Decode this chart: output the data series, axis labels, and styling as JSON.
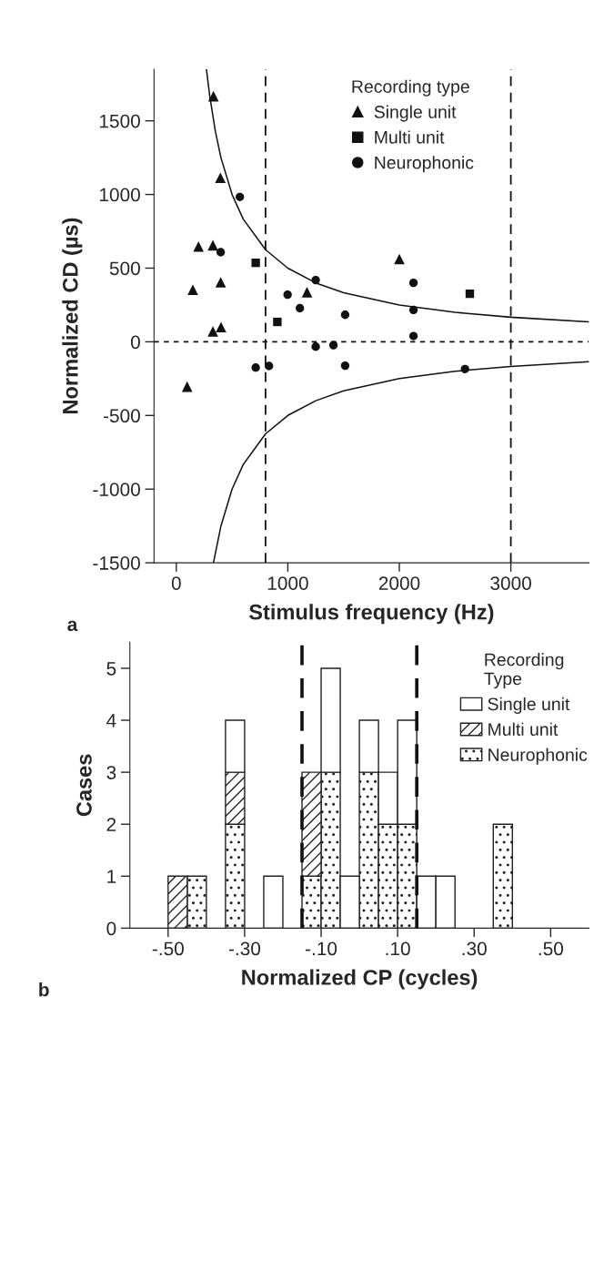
{
  "chart_data": [
    {
      "type": "scatter",
      "xlabel": "Stimulus frequency (Hz)",
      "ylabel": "Normalized CD (µs)",
      "legend_title": "Recording type",
      "legend": "top right",
      "grid": false,
      "xlim": [
        -200,
        3700
      ],
      "xticks": [
        0,
        1000,
        2000,
        3000
      ],
      "ylim": [
        -1500,
        1850
      ],
      "yticks": [
        -1500,
        -1000,
        -500,
        0,
        500,
        1000,
        1500
      ],
      "series": [
        {
          "name": "Single unit",
          "color": "#111111",
          "marker": "triangle",
          "x": [
            333,
            395,
            199,
            328,
            398,
            148,
            401,
            328,
            97,
            1172,
            2000
          ],
          "values": [
            1667,
            1113,
            647,
            655,
            404,
            353,
            100,
            70,
            -304,
            337,
            562
          ]
        },
        {
          "name": "Multi unit",
          "color": "#111111",
          "marker": "square",
          "x": [
            712,
            906,
            2632
          ],
          "values": [
            536,
            135,
            326
          ]
        },
        {
          "name": "Neurophonic",
          "color": "#111111",
          "marker": "circle",
          "x": [
            570,
            398,
            1250,
            998,
            1108,
            1514,
            2127,
            2127,
            2127,
            1250,
            1409,
            712,
            831,
            1514,
            2589
          ],
          "values": [
            983,
            608,
            419,
            320,
            228,
            183,
            400,
            216,
            39,
            -33,
            -23,
            -175,
            -164,
            -162,
            -185
          ]
        },
        {
          "type": "line",
          "color": "#111111",
          "marker": "none",
          "x": [
            270,
            300,
            350,
            400,
            500,
            600,
            800,
            1000,
            1250,
            1500,
            2000,
            2500,
            3000,
            3700
          ],
          "values": [
            1850,
            1667,
            1429,
            1250,
            1000,
            833,
            625,
            500,
            400,
            333,
            250,
            200,
            167,
            135
          ]
        },
        {
          "type": "line",
          "color": "#111111",
          "marker": "none",
          "x": [
            333,
            400,
            500,
            600,
            800,
            1000,
            1250,
            1500,
            2000,
            2500,
            3000,
            3700
          ],
          "values": [
            -1500,
            -1250,
            -1000,
            -833,
            -625,
            -500,
            -400,
            -333,
            -250,
            -200,
            -167,
            -135
          ]
        }
      ],
      "ref_lines": [
        {
          "axis": "x",
          "value": 800,
          "line_style": "dashed"
        },
        {
          "axis": "x",
          "value": 3000,
          "line_style": "dashed"
        },
        {
          "axis": "y",
          "value": 0,
          "line_style": "dotted"
        }
      ],
      "annotations": [
        "a"
      ]
    },
    {
      "type": "bar",
      "stacked": true,
      "xlabel": "Normalized CP (cycles)",
      "ylabel": "Cases",
      "legend_title": "Recording\nType",
      "legend": "top right",
      "grid": false,
      "x": [
        -0.475,
        -0.425,
        -0.325,
        -0.225,
        -0.125,
        -0.075,
        -0.025,
        0.025,
        0.075,
        0.125,
        0.175,
        0.225,
        0.375
      ],
      "xlim": [
        -0.6,
        0.6
      ],
      "xticks": [
        {
          "value": -0.5,
          "label": "-.50"
        },
        {
          "value": -0.3,
          "label": "-.30"
        },
        {
          "value": -0.1,
          "label": "-.10"
        },
        {
          "value": 0.1,
          "label": ".10"
        },
        {
          "value": 0.3,
          "label": ".30"
        },
        {
          "value": 0.5,
          "label": ".50"
        }
      ],
      "ylim": [
        0,
        5.5
      ],
      "yticks": [
        0,
        1,
        2,
        3,
        4,
        5
      ],
      "series": [
        {
          "name": "Neurophonic",
          "color": "#222222",
          "values": [
            0,
            1,
            2,
            0,
            1,
            3,
            0,
            3,
            2,
            2,
            0,
            0,
            2
          ]
        },
        {
          "name": "Multi unit",
          "color": "#222222",
          "values": [
            1,
            0,
            1,
            0,
            2,
            0,
            0,
            0,
            0,
            0,
            0,
            0,
            0
          ]
        },
        {
          "name": "Single unit",
          "color": "#ffffff",
          "values": [
            0,
            0,
            1,
            1,
            0,
            2,
            1,
            1,
            1,
            2,
            1,
            1,
            0
          ]
        }
      ],
      "ref_lines": [
        {
          "axis": "x",
          "value": -0.15,
          "line_style": "dashed"
        },
        {
          "axis": "x",
          "value": 0.15,
          "line_style": "dashed"
        }
      ],
      "annotations": [
        "b"
      ]
    }
  ]
}
